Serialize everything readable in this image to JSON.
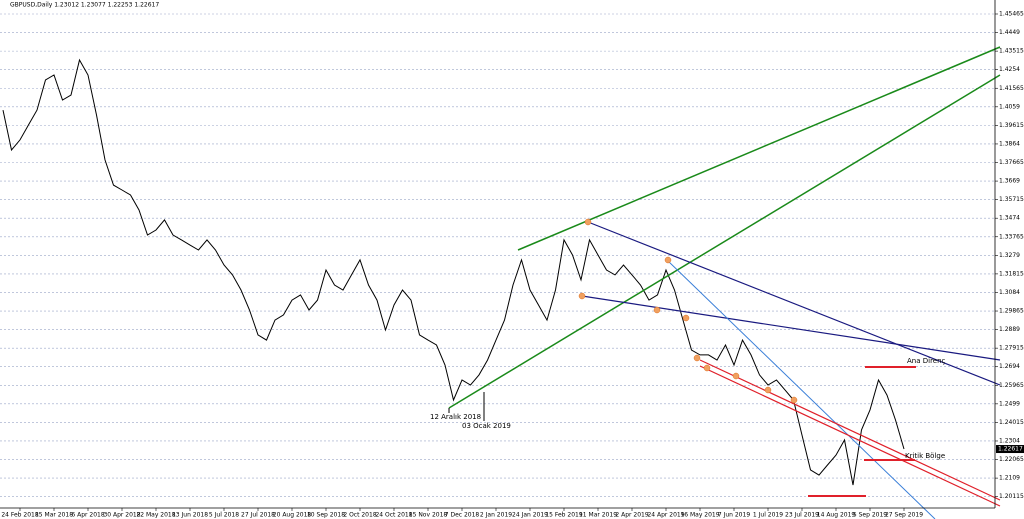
{
  "chart_data": {
    "type": "line",
    "title": "GBPUSD,Daily  1.23012 1.23077 1.22253 1.22617",
    "categories": [
      null,
      null,
      "24 Feb 2018",
      null,
      null,
      null,
      "15 Mar 2018",
      null,
      null,
      null,
      "6 Apr 2018",
      null,
      null,
      null,
      "30 Apr 2018",
      null,
      null,
      null,
      "22 May 2018",
      null,
      null,
      null,
      "13 Jun 2018",
      null,
      null,
      null,
      "5 Jul 2018",
      null,
      null,
      null,
      "27 Jul 2018",
      null,
      null,
      null,
      "20 Aug 2018",
      null,
      null,
      null,
      "10 Sep 2018",
      null,
      null,
      null,
      "2 Oct 2018",
      null,
      null,
      null,
      "24 Oct 2018",
      null,
      null,
      null,
      "15 Nov 2018",
      null,
      null,
      null,
      "7 Dec 2018",
      null,
      null,
      null,
      "2 Jan 2019",
      null,
      null,
      null,
      "24 Jan 2019",
      null,
      null,
      null,
      "15 Feb 2019",
      null,
      null,
      null,
      "11 Mar 2019",
      null,
      null,
      null,
      "2 Apr 2019",
      null,
      null,
      null,
      "24 Apr 2019",
      null,
      null,
      null,
      "16 May 2019",
      null,
      null,
      null,
      "7 Jun 2019",
      null,
      null,
      null,
      "1 Jul 2019",
      null,
      null,
      null,
      "23 Jul 2019",
      null,
      null,
      null,
      "14 Aug 2019",
      null,
      null,
      null,
      "5 Sep 2019",
      null,
      null,
      null,
      "27 Sep 2019"
    ],
    "series": [
      {
        "name": "GBPUSD",
        "color": "#000000",
        "values": [
          1.4042,
          1.3832,
          1.3885,
          1.3964,
          1.4042,
          1.42,
          1.4226,
          1.4095,
          1.4121,
          1.4305,
          1.4226,
          1.4016,
          1.378,
          1.3648,
          1.3622,
          1.3596,
          1.3517,
          1.3386,
          1.3412,
          1.3465,
          1.3386,
          1.336,
          1.3333,
          1.3307,
          1.336,
          1.3307,
          1.3228,
          1.3176,
          1.3097,
          1.2992,
          1.2861,
          1.2834,
          1.2939,
          1.2966,
          1.3044,
          1.3071,
          1.2992,
          1.3044,
          1.3202,
          1.3123,
          1.3097,
          1.3176,
          1.3255,
          1.3123,
          1.3044,
          1.2887,
          1.3018,
          1.3097,
          1.3044,
          1.2861,
          1.2834,
          1.2808,
          1.2703,
          1.2519,
          1.2624,
          1.2598,
          1.2651,
          1.2729,
          1.2834,
          1.2939,
          1.3123,
          1.3255,
          1.3097,
          1.3018,
          1.2939,
          1.3097,
          1.336,
          1.3281,
          1.315,
          1.336,
          1.3281,
          1.3202,
          1.3176,
          1.3228,
          1.3176,
          1.3123,
          1.3044,
          1.3071,
          1.3202,
          1.3097,
          1.2939,
          1.2782,
          1.2756,
          1.2756,
          1.2729,
          1.2808,
          1.2703,
          1.2834,
          1.2756,
          1.2651,
          1.2598,
          1.2624,
          1.2572,
          1.2519,
          1.2335,
          1.2152,
          1.2125,
          1.2178,
          1.223,
          1.2309,
          1.2073,
          1.2362,
          1.2467,
          1.2624,
          1.2545,
          1.2414,
          1.22617
        ]
      }
    ],
    "current_price": 1.22617,
    "ylim": [
      1.1952,
      1.462
    ],
    "yticks": [
      1.45465,
      1.4449,
      1.43515,
      1.4254,
      1.41565,
      1.4059,
      1.39615,
      1.3864,
      1.37665,
      1.3669,
      1.35715,
      1.3474,
      1.33765,
      1.3279,
      1.31815,
      1.3084,
      1.29865,
      1.2889,
      1.27915,
      1.2694,
      1.25965,
      1.2499,
      1.24015,
      1.2304,
      1.22065,
      1.2109,
      1.20115
    ],
    "grid": true,
    "annotations": [
      "12 Aralık 2018",
      "03 Ocak 2019",
      "Ana Direnç",
      "Kritik Bölge"
    ]
  }
}
